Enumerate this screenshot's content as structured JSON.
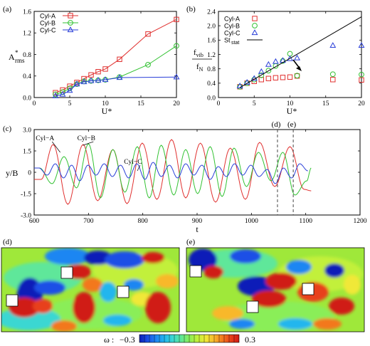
{
  "panels": {
    "a": "(a)",
    "b": "(b)",
    "c": "(c)",
    "d": "(d)",
    "e": "(e)"
  },
  "colorbar": {
    "label": "ω :",
    "min_label": "−0.3",
    "max_label": "0.3",
    "colors": [
      "#0b1fb8",
      "#1a4fe6",
      "#1e86f2",
      "#22b6ee",
      "#3bd7d2",
      "#5ee79a",
      "#8aee58",
      "#c2f03a",
      "#f0e838",
      "#f8b82c",
      "#f3781f",
      "#e8401a",
      "#d01a16"
    ]
  },
  "colors": {
    "cyl_a": "#e0302f",
    "cyl_b": "#33c233",
    "cyl_c": "#2a3fd8",
    "st_stat": "#000000"
  },
  "chart_data": [
    {
      "id": "a",
      "type": "line",
      "title": "",
      "xlabel": "U*",
      "ylabel": "A*rms",
      "xlim": [
        0,
        20
      ],
      "ylim": [
        0,
        1.6
      ],
      "xticks": [
        "0",
        "5",
        "10",
        "15",
        "20"
      ],
      "yticks": [
        "0.0",
        "0.4",
        "0.8",
        "1.2",
        "1.6"
      ],
      "legend": "top-left",
      "series": [
        {
          "name": "Cyl-A",
          "marker": "square",
          "x": [
            3,
            4,
            5,
            6,
            7,
            8,
            9,
            10,
            12,
            16,
            20
          ],
          "y": [
            0.09,
            0.14,
            0.21,
            0.28,
            0.35,
            0.42,
            0.48,
            0.53,
            0.71,
            1.18,
            1.45
          ]
        },
        {
          "name": "Cyl-B",
          "marker": "circle",
          "x": [
            3,
            4,
            5,
            6,
            7,
            8,
            9,
            10,
            12,
            16,
            20
          ],
          "y": [
            0.06,
            0.1,
            0.17,
            0.25,
            0.3,
            0.31,
            0.32,
            0.33,
            0.38,
            0.61,
            0.96
          ]
        },
        {
          "name": "Cyl-C",
          "marker": "triangle",
          "x": [
            3,
            4,
            5,
            6,
            7,
            8,
            9,
            10,
            12,
            20
          ],
          "y": [
            0.03,
            0.06,
            0.13,
            0.25,
            0.29,
            0.31,
            0.32,
            0.33,
            0.37,
            0.38
          ]
        }
      ]
    },
    {
      "id": "b",
      "type": "scatter",
      "title": "",
      "xlabel": "U*",
      "ylabel": "fvib/fN",
      "xlim": [
        0,
        20
      ],
      "ylim": [
        0,
        2.4
      ],
      "xticks": [
        "0",
        "5",
        "10",
        "15",
        "20"
      ],
      "yticks": [
        "0.0",
        "0.4",
        "0.8",
        "1.2",
        "1.6",
        "2.0",
        "2.4"
      ],
      "legend": "top-left",
      "annotation": "(d)→(e)",
      "series": [
        {
          "name": "Cyl-A",
          "marker": "square",
          "x": [
            3,
            4,
            5,
            6,
            7,
            8,
            9,
            10,
            11,
            16,
            20
          ],
          "y": [
            0.3,
            0.4,
            0.45,
            0.5,
            0.53,
            0.55,
            0.56,
            0.57,
            0.6,
            0.5,
            0.49
          ]
        },
        {
          "name": "Cyl-B",
          "marker": "circle",
          "x": [
            3,
            4,
            5,
            6,
            7,
            8,
            9,
            10,
            11,
            16,
            20
          ],
          "y": [
            0.3,
            0.4,
            0.5,
            0.62,
            0.75,
            0.88,
            1.02,
            1.22,
            0.61,
            0.65,
            0.64
          ]
        },
        {
          "name": "Cyl-C",
          "marker": "triangle",
          "x": [
            3,
            4,
            5,
            6,
            7,
            8,
            9,
            10,
            11,
            16,
            20
          ],
          "y": [
            0.32,
            0.42,
            0.53,
            0.72,
            0.92,
            1.0,
            1.03,
            1.08,
            1.1,
            1.45,
            1.45
          ]
        },
        {
          "name": "St_stat",
          "marker": "line",
          "x": [
            3,
            20
          ],
          "y": [
            0.28,
            2.25
          ]
        }
      ]
    },
    {
      "id": "c",
      "type": "line",
      "title": "",
      "xlabel": "t",
      "ylabel": "y/B",
      "xlim": [
        600,
        1200
      ],
      "ylim": [
        -3.0,
        3.0
      ],
      "xticks": [
        "600",
        "700",
        "800",
        "900",
        "1000",
        "1100",
        "1200"
      ],
      "yticks": [
        "-3.0",
        "-1.5",
        "0",
        "1.5",
        "3.0"
      ],
      "markers_t": [
        1048,
        1077
      ],
      "marker_labels": [
        "(d)",
        "(e)"
      ],
      "series": [
        {
          "name": "Cyl-A",
          "t_start": 600,
          "t_end": 1110,
          "peaks_t": [
            613,
            635,
            662,
            690,
            717,
            745,
            771,
            799,
            826,
            853,
            879,
            906,
            934,
            961,
            989,
            1015,
            1043,
            1071,
            1097,
            1110
          ],
          "peaks_y": [
            -0.5,
            1.95,
            -2.25,
            1.95,
            -2.0,
            1.6,
            -2.2,
            2.05,
            -1.9,
            2.3,
            -1.8,
            2.05,
            -2.1,
            1.7,
            -1.9,
            2.1,
            -1.0,
            1.8,
            -1.2,
            -1.3
          ]
        },
        {
          "name": "Cyl-B",
          "t_start": 600,
          "t_end": 1110,
          "peaks_t": [
            610,
            633,
            655,
            678,
            700,
            722,
            745,
            767,
            790,
            812,
            834,
            857,
            879,
            901,
            924,
            946,
            968,
            991,
            1013,
            1036,
            1058,
            1080,
            1102,
            1110
          ],
          "peaks_y": [
            0.3,
            -0.8,
            1.1,
            -1.1,
            2.0,
            -1.8,
            1.6,
            -1.4,
            1.8,
            -1.8,
            1.9,
            -1.6,
            1.6,
            -1.5,
            1.8,
            -1.7,
            1.7,
            -1.0,
            1.4,
            -0.6,
            1.4,
            -1.6,
            -0.6,
            0.3
          ]
        },
        {
          "name": "Cyl-C",
          "t_start": 600,
          "t_end": 1110,
          "peaks_t": [
            609,
            624,
            639,
            654,
            669,
            684,
            699,
            714,
            729,
            744,
            759,
            774,
            789,
            804,
            819,
            834,
            849,
            864,
            879,
            894,
            909,
            924,
            939,
            954,
            969,
            984,
            999,
            1014,
            1029,
            1044,
            1059,
            1074,
            1089,
            1104
          ],
          "peaks_y": [
            0.3,
            -0.2,
            0.6,
            -0.4,
            0.5,
            -0.6,
            0.5,
            -0.2,
            0.6,
            -0.3,
            0.5,
            -0.4,
            0.6,
            -0.5,
            0.7,
            -0.3,
            0.5,
            -0.4,
            0.6,
            -0.2,
            0.5,
            -0.5,
            0.4,
            -0.3,
            0.6,
            -0.2,
            0.5,
            -0.3,
            0.2,
            -0.8,
            0.3,
            -0.4,
            0.6,
            0.1
          ]
        }
      ],
      "labels": [
        "Cyl−A",
        "Cyl−B",
        "Cyl−C"
      ]
    }
  ]
}
